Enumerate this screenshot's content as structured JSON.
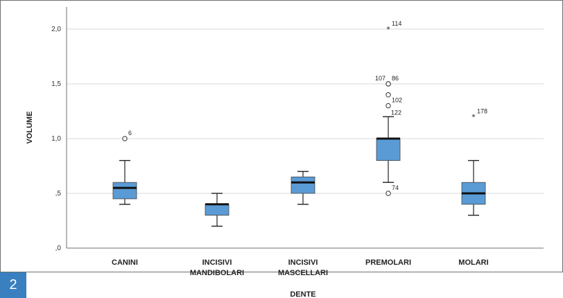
{
  "figure_number": "2",
  "colors": {
    "box_fill": "#5b9bd5",
    "badge": "#3a7fc0",
    "median": "#111111"
  },
  "chart_data": {
    "type": "boxplot",
    "xlabel": "DENTE",
    "ylabel": "VOLUME",
    "ylim": [
      0,
      2.2
    ],
    "yticks": [
      0,
      0.5,
      1.0,
      1.5,
      2.0
    ],
    "ytick_labels": [
      ",0",
      ",5",
      "1,0",
      "1,5",
      "2,0"
    ],
    "grid": "horizontal",
    "categories": [
      [
        "CANINI"
      ],
      [
        "INCISIVI",
        "MANDIBOLARI"
      ],
      [
        "INCISIVI",
        "MASCELLARI"
      ],
      [
        "PREMOLARI"
      ],
      [
        "MOLARI"
      ]
    ],
    "boxes": [
      {
        "category": "CANINI",
        "min": 0.4,
        "q1": 0.45,
        "median": 0.55,
        "q3": 0.6,
        "max": 0.8,
        "outliers": [
          {
            "value": 1.0,
            "label": "6",
            "kind": "circle"
          }
        ]
      },
      {
        "category": "INCISIVI MANDIBOLARI",
        "min": 0.2,
        "q1": 0.3,
        "median": 0.4,
        "q3": 0.4,
        "max": 0.5,
        "outliers": []
      },
      {
        "category": "INCISIVI MASCELLARI",
        "min": 0.4,
        "q1": 0.5,
        "median": 0.6,
        "q3": 0.65,
        "max": 0.7,
        "outliers": []
      },
      {
        "category": "PREMOLARI",
        "min": 0.6,
        "q1": 0.8,
        "median": 1.0,
        "q3": 1.0,
        "max": 1.2,
        "outliers": [
          {
            "value": 2.0,
            "label": "114",
            "kind": "star"
          },
          {
            "value": 1.5,
            "label": "107",
            "kind": "circle",
            "label_side": "left"
          },
          {
            "value": 1.5,
            "label": "86",
            "kind": "circle"
          },
          {
            "value": 1.4,
            "label": "",
            "kind": "circle"
          },
          {
            "value": 1.3,
            "label": "102",
            "kind": "circle"
          },
          {
            "value": 1.2,
            "label": "122",
            "kind": "circle_label_only"
          },
          {
            "value": 0.5,
            "label": "74",
            "kind": "circle"
          }
        ]
      },
      {
        "category": "MOLARI",
        "min": 0.3,
        "q1": 0.4,
        "median": 0.5,
        "q3": 0.6,
        "max": 0.8,
        "outliers": [
          {
            "value": 1.2,
            "label": "178",
            "kind": "star"
          }
        ]
      }
    ]
  }
}
